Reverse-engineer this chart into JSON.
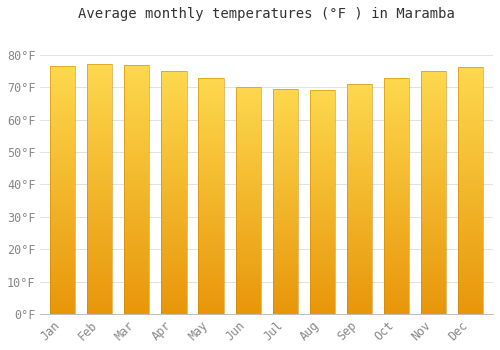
{
  "title": "Average monthly temperatures (°F ) in Maramba",
  "categories": [
    "Jan",
    "Feb",
    "Mar",
    "Apr",
    "May",
    "Jun",
    "Jul",
    "Aug",
    "Sep",
    "Oct",
    "Nov",
    "Dec"
  ],
  "values": [
    76.5,
    77.2,
    77.0,
    75.0,
    73.0,
    70.2,
    69.4,
    69.3,
    71.0,
    73.0,
    75.0,
    76.2
  ],
  "bar_color_bottom": "#E8960A",
  "bar_color_top": "#FDD84E",
  "background_color": "#FFFFFF",
  "grid_color": "#DDDDDD",
  "ylim": [
    0,
    88
  ],
  "ytick_interval": 10,
  "title_fontsize": 10,
  "tick_fontsize": 8.5,
  "bar_width": 0.68
}
